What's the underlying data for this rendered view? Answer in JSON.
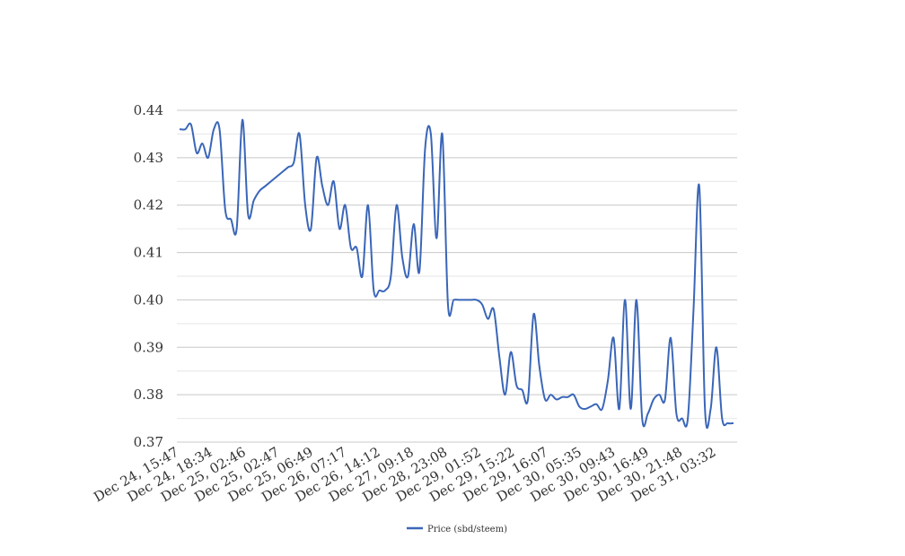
{
  "chart_data": {
    "type": "line",
    "title": "",
    "xlabel": "",
    "ylabel": "",
    "ylim": [
      0.37,
      0.44
    ],
    "y_ticks": [
      "0.37",
      "0.38",
      "0.39",
      "0.40",
      "0.41",
      "0.42",
      "0.43",
      "0.44"
    ],
    "x_tick_labels": [
      "Dec 24, 15:47",
      "Dec 24, 18:34",
      "Dec 25, 02:46",
      "Dec 25, 02:47",
      "Dec 25, 06:49",
      "Dec 26, 07:17",
      "Dec 26, 14:12",
      "Dec 27, 09:18",
      "Dec 28, 23:08",
      "Dec 29, 01:52",
      "Dec 29, 15:22",
      "Dec 29, 16:07",
      "Dec 30, 05:35",
      "Dec 30, 09:43",
      "Dec 30, 16:49",
      "Dec 30, 21:48",
      "Dec 31, 03:32"
    ],
    "grid": true,
    "legend_position": "bottom-center",
    "colors": {
      "line": "#3a66b8",
      "major_grid": "#c8c8c8",
      "minor_grid": "#e6e6e6"
    },
    "series": [
      {
        "name": "Price (sbd/steem)",
        "values": [
          0.436,
          0.436,
          0.437,
          0.431,
          0.433,
          0.43,
          0.436,
          0.436,
          0.419,
          0.417,
          0.415,
          0.438,
          0.418,
          0.421,
          0.423,
          0.424,
          0.425,
          0.426,
          0.427,
          0.428,
          0.429,
          0.435,
          0.42,
          0.415,
          0.43,
          0.424,
          0.42,
          0.425,
          0.415,
          0.42,
          0.411,
          0.411,
          0.405,
          0.42,
          0.402,
          0.402,
          0.402,
          0.405,
          0.42,
          0.409,
          0.405,
          0.416,
          0.406,
          0.432,
          0.435,
          0.413,
          0.435,
          0.399,
          0.4,
          0.4,
          0.4,
          0.4,
          0.4,
          0.399,
          0.396,
          0.398,
          0.388,
          0.38,
          0.389,
          0.382,
          0.381,
          0.379,
          0.397,
          0.386,
          0.379,
          0.38,
          0.379,
          0.3795,
          0.3795,
          0.38,
          0.3775,
          0.377,
          0.3775,
          0.378,
          0.377,
          0.383,
          0.392,
          0.377,
          0.4,
          0.377,
          0.4,
          0.375,
          0.376,
          0.379,
          0.38,
          0.379,
          0.392,
          0.376,
          0.375,
          0.375,
          0.398,
          0.424,
          0.377,
          0.377,
          0.39,
          0.375,
          0.374,
          0.374
        ]
      }
    ]
  }
}
